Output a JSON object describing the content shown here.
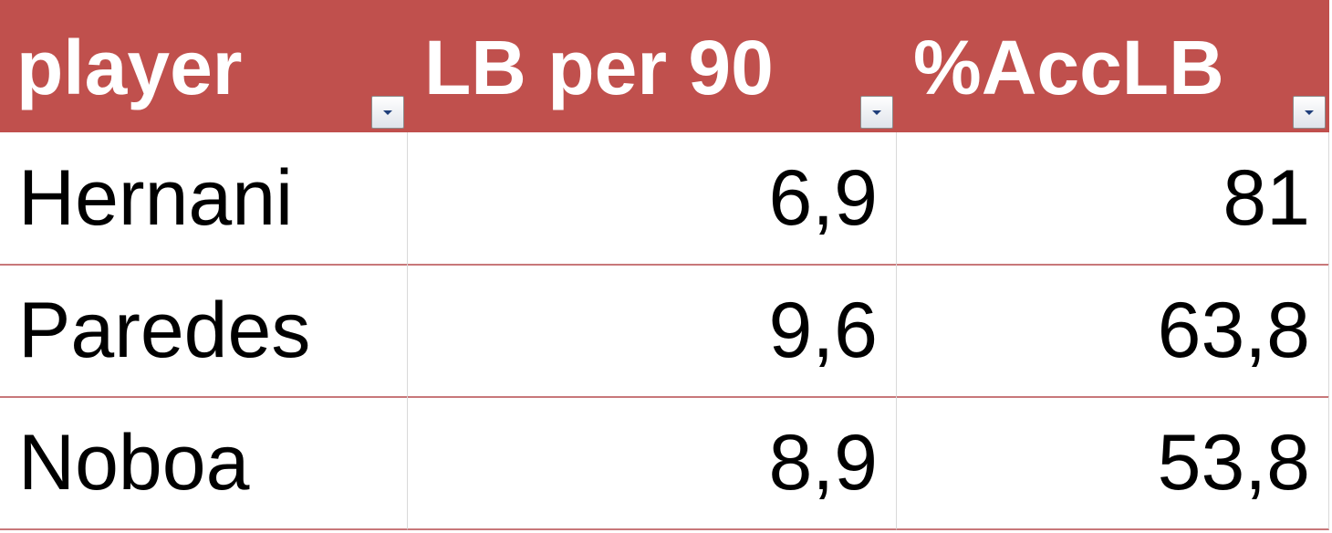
{
  "table": {
    "header": [
      "player",
      "LB per 90",
      "%AccLB"
    ],
    "rows": [
      [
        "Hernani",
        "6,9",
        "81"
      ],
      [
        "Paredes",
        "9,6",
        "63,8"
      ],
      [
        "Noboa",
        "8,9",
        "53,8"
      ]
    ]
  }
}
